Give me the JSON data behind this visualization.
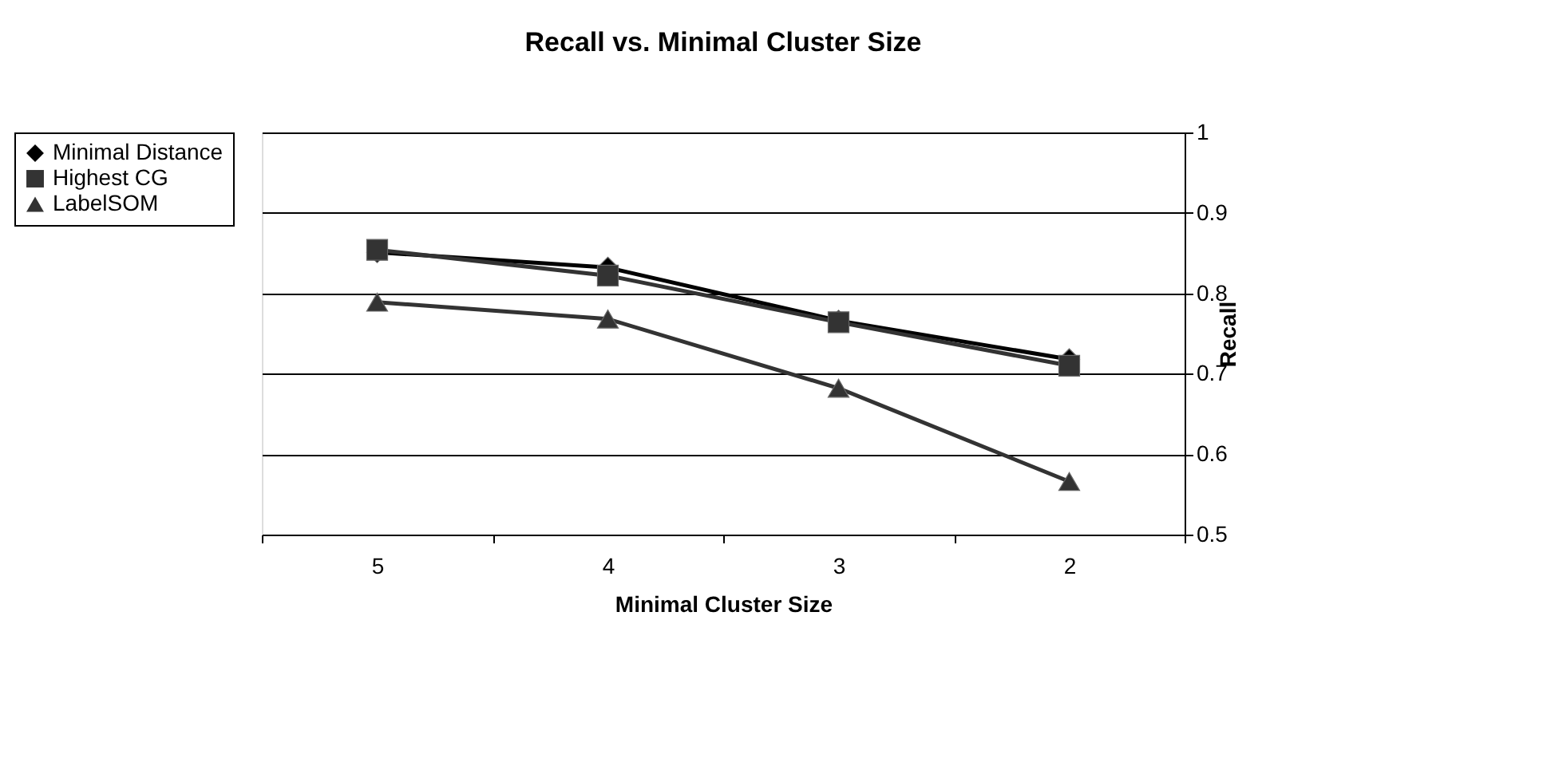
{
  "chart_data": {
    "type": "line",
    "title": "Recall vs. Minimal Cluster Size",
    "xlabel": "Minimal Cluster Size",
    "ylabel": "Recall",
    "categories": [
      "5",
      "4",
      "3",
      "2"
    ],
    "series": [
      {
        "name": "Minimal Distance",
        "color": "#000000",
        "marker": "diamond",
        "values": [
          0.851,
          0.832,
          0.766,
          0.718
        ]
      },
      {
        "name": "Highest CG",
        "color": "#333333",
        "marker": "square",
        "values": [
          0.854,
          0.822,
          0.764,
          0.71
        ]
      },
      {
        "name": "LabelSOM",
        "color": "#333333",
        "marker": "triangle",
        "values": [
          0.789,
          0.768,
          0.682,
          0.566
        ]
      }
    ],
    "ylim": [
      0.5,
      1
    ],
    "yticks": [
      0.5,
      0.6,
      0.7,
      0.8,
      0.9,
      1
    ],
    "grid": "y",
    "legend": "left",
    "line_style": "solid"
  }
}
